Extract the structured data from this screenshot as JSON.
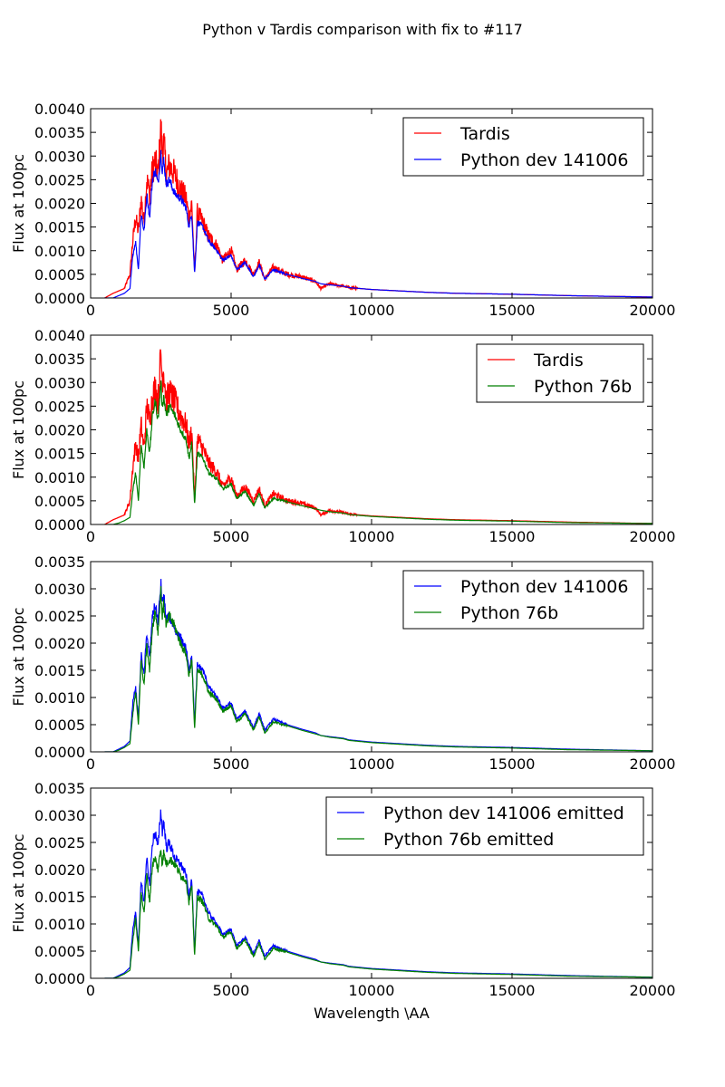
{
  "figure": {
    "title": "Python v Tardis comparison with fix to #117",
    "xlabel": "Wavelength \\AA"
  },
  "colors": {
    "red": "#ff0000",
    "blue": "#0000ff",
    "green": "#007f00"
  },
  "chart_data": [
    {
      "type": "line",
      "ylabel": "Flux at 100pc",
      "xlim": [
        0,
        20000
      ],
      "ylim": [
        0,
        0.004
      ],
      "xticks": [
        "0",
        "5000",
        "10000",
        "15000",
        "20000"
      ],
      "yticks": [
        "0.0000",
        "0.0005",
        "0.0010",
        "0.0015",
        "0.0020",
        "0.0025",
        "0.0030",
        "0.0035",
        "0.0040"
      ],
      "legend_position": "upper-right",
      "grid": false,
      "series": [
        {
          "name": "Tardis",
          "color": "red",
          "noisy": true,
          "x": [
            500,
            800,
            1000,
            1200,
            1400,
            1500,
            1600,
            1700,
            1800,
            1900,
            2000,
            2100,
            2200,
            2300,
            2400,
            2500,
            2550,
            2600,
            2700,
            2800,
            3000,
            3200,
            3400,
            3500,
            3600,
            3700,
            3800,
            4000,
            4200,
            4500,
            4700,
            5000,
            5200,
            5500,
            5800,
            6000,
            6200,
            6500,
            7000,
            7500,
            8000,
            8200,
            8500,
            9000,
            9200,
            10000,
            11000,
            12000,
            13000,
            15000,
            17000,
            20000
          ],
          "y": [
            0.0,
            0.0001,
            0.00015,
            0.0002,
            0.0005,
            0.0012,
            0.0017,
            0.0014,
            0.0021,
            0.0016,
            0.0025,
            0.0022,
            0.0027,
            0.0029,
            0.0026,
            0.0036,
            0.0031,
            0.0033,
            0.0026,
            0.0028,
            0.0026,
            0.0023,
            0.0021,
            0.0017,
            0.002,
            0.0005,
            0.0018,
            0.0016,
            0.0013,
            0.0011,
            0.0008,
            0.001,
            0.0006,
            0.0008,
            0.0005,
            0.00075,
            0.0004,
            0.00065,
            0.0005,
            0.00045,
            0.00035,
            0.0002,
            0.0003,
            0.00025,
            0.00022,
            0.00018,
            0.00015,
            0.00012,
            0.0001,
            8e-05,
            5e-05,
            2e-05
          ]
        },
        {
          "name": "Python dev 141006",
          "color": "blue",
          "noisy": false,
          "x": [
            500,
            800,
            1000,
            1200,
            1400,
            1500,
            1600,
            1700,
            1800,
            1900,
            2000,
            2100,
            2200,
            2300,
            2400,
            2500,
            2550,
            2600,
            2700,
            2800,
            3000,
            3200,
            3400,
            3500,
            3600,
            3700,
            3800,
            4000,
            4200,
            4500,
            4700,
            5000,
            5200,
            5500,
            5800,
            6000,
            6200,
            6500,
            7000,
            7500,
            8000,
            8200,
            8500,
            9000,
            9200,
            10000,
            11000,
            12000,
            13000,
            15000,
            17000,
            20000
          ],
          "y": [
            0.0,
            0.0,
            5e-05,
            0.0001,
            0.0002,
            0.0009,
            0.0012,
            0.0006,
            0.0018,
            0.0014,
            0.0022,
            0.0017,
            0.0025,
            0.0027,
            0.0024,
            0.0031,
            0.0027,
            0.0029,
            0.0024,
            0.0025,
            0.0022,
            0.0021,
            0.0019,
            0.0015,
            0.0018,
            0.0005,
            0.0016,
            0.0015,
            0.0012,
            0.001,
            0.0008,
            0.0009,
            0.0006,
            0.00075,
            0.00045,
            0.0007,
            0.0004,
            0.0006,
            0.0005,
            0.00042,
            0.00035,
            0.0003,
            0.00028,
            0.00025,
            0.00022,
            0.00018,
            0.00015,
            0.00012,
            0.0001,
            8e-05,
            5e-05,
            2e-05
          ]
        }
      ]
    },
    {
      "type": "line",
      "ylabel": "Flux at 100pc",
      "xlim": [
        0,
        20000
      ],
      "ylim": [
        0,
        0.004
      ],
      "xticks": [
        "0",
        "5000",
        "10000",
        "15000",
        "20000"
      ],
      "yticks": [
        "0.0000",
        "0.0005",
        "0.0010",
        "0.0015",
        "0.0020",
        "0.0025",
        "0.0030",
        "0.0035",
        "0.0040"
      ],
      "legend_position": "upper-right",
      "grid": false,
      "series": [
        {
          "name": "Tardis",
          "color": "red",
          "noisy": true,
          "x": [
            500,
            800,
            1000,
            1200,
            1400,
            1500,
            1600,
            1700,
            1800,
            1900,
            2000,
            2100,
            2200,
            2300,
            2400,
            2500,
            2550,
            2600,
            2700,
            2800,
            3000,
            3200,
            3400,
            3500,
            3600,
            3700,
            3800,
            4000,
            4200,
            4500,
            4700,
            5000,
            5200,
            5500,
            5800,
            6000,
            6200,
            6500,
            7000,
            7500,
            8000,
            8200,
            8500,
            9000,
            9200,
            10000,
            11000,
            12000,
            13000,
            15000,
            17000,
            20000
          ],
          "y": [
            0.0,
            0.0001,
            0.00015,
            0.0002,
            0.0005,
            0.0012,
            0.0017,
            0.0014,
            0.0021,
            0.0016,
            0.0025,
            0.0022,
            0.0027,
            0.0029,
            0.0026,
            0.0036,
            0.0031,
            0.0033,
            0.0026,
            0.0028,
            0.0026,
            0.0023,
            0.0021,
            0.0017,
            0.002,
            0.0005,
            0.0018,
            0.0016,
            0.0013,
            0.0011,
            0.0008,
            0.001,
            0.0006,
            0.0008,
            0.0005,
            0.00075,
            0.0004,
            0.00065,
            0.0005,
            0.00045,
            0.00035,
            0.0002,
            0.0003,
            0.00025,
            0.00022,
            0.00018,
            0.00015,
            0.00012,
            0.0001,
            8e-05,
            5e-05,
            2e-05
          ]
        },
        {
          "name": "Python 76b",
          "color": "green",
          "noisy": false,
          "x": [
            500,
            800,
            1000,
            1200,
            1400,
            1500,
            1600,
            1700,
            1800,
            1900,
            2000,
            2100,
            2200,
            2300,
            2400,
            2500,
            2550,
            2600,
            2700,
            2800,
            3000,
            3200,
            3400,
            3500,
            3600,
            3700,
            3800,
            4000,
            4200,
            4500,
            4700,
            5000,
            5200,
            5500,
            5800,
            6000,
            6200,
            6500,
            7000,
            7500,
            8000,
            8200,
            8500,
            9000,
            9200,
            10000,
            11000,
            12000,
            13000,
            15000,
            17000,
            20000
          ],
          "y": [
            0.0,
            0.0,
            3e-05,
            8e-05,
            0.00015,
            0.0007,
            0.0011,
            0.0005,
            0.0017,
            0.0012,
            0.002,
            0.0015,
            0.0023,
            0.0026,
            0.0022,
            0.003,
            0.0025,
            0.0027,
            0.0023,
            0.0025,
            0.0023,
            0.002,
            0.0018,
            0.0014,
            0.0017,
            0.0004,
            0.0015,
            0.0014,
            0.0011,
            0.00095,
            0.00075,
            0.00085,
            0.00055,
            0.0007,
            0.0004,
            0.00065,
            0.00035,
            0.00055,
            0.00048,
            0.0004,
            0.00033,
            0.0003,
            0.00027,
            0.00024,
            0.00021,
            0.00017,
            0.00014,
            0.00011,
            9e-05,
            7e-05,
            4e-05,
            2e-05
          ]
        }
      ]
    },
    {
      "type": "line",
      "ylabel": "Flux at 100pc",
      "xlim": [
        0,
        20000
      ],
      "ylim": [
        0,
        0.0035
      ],
      "xticks": [
        "0",
        "5000",
        "10000",
        "15000",
        "20000"
      ],
      "yticks": [
        "0.0000",
        "0.0005",
        "0.0010",
        "0.0015",
        "0.0020",
        "0.0025",
        "0.0030",
        "0.0035"
      ],
      "legend_position": "upper-right",
      "grid": false,
      "series": [
        {
          "name": "Python dev 141006",
          "color": "blue",
          "noisy": false,
          "x": [
            500,
            800,
            1000,
            1200,
            1400,
            1500,
            1600,
            1700,
            1800,
            1900,
            2000,
            2100,
            2200,
            2300,
            2400,
            2500,
            2550,
            2600,
            2700,
            2800,
            3000,
            3200,
            3400,
            3500,
            3600,
            3700,
            3800,
            4000,
            4200,
            4500,
            4700,
            5000,
            5200,
            5500,
            5800,
            6000,
            6200,
            6500,
            7000,
            7500,
            8000,
            8200,
            8500,
            9000,
            9200,
            10000,
            11000,
            12000,
            13000,
            15000,
            17000,
            20000
          ],
          "y": [
            0.0,
            0.0,
            5e-05,
            0.0001,
            0.0002,
            0.0009,
            0.0012,
            0.0006,
            0.0018,
            0.0014,
            0.0022,
            0.0017,
            0.0025,
            0.0027,
            0.0024,
            0.0031,
            0.0027,
            0.0029,
            0.0024,
            0.0025,
            0.0022,
            0.0021,
            0.0019,
            0.0015,
            0.0018,
            0.0005,
            0.0016,
            0.0015,
            0.0012,
            0.001,
            0.0008,
            0.0009,
            0.0006,
            0.00075,
            0.00045,
            0.0007,
            0.0004,
            0.0006,
            0.0005,
            0.00042,
            0.00035,
            0.0003,
            0.00028,
            0.00025,
            0.00022,
            0.00018,
            0.00015,
            0.00012,
            0.0001,
            8e-05,
            5e-05,
            2e-05
          ]
        },
        {
          "name": "Python 76b",
          "color": "green",
          "noisy": false,
          "x": [
            500,
            800,
            1000,
            1200,
            1400,
            1500,
            1600,
            1700,
            1800,
            1900,
            2000,
            2100,
            2200,
            2300,
            2400,
            2500,
            2550,
            2600,
            2700,
            2800,
            3000,
            3200,
            3400,
            3500,
            3600,
            3700,
            3800,
            4000,
            4200,
            4500,
            4700,
            5000,
            5200,
            5500,
            5800,
            6000,
            6200,
            6500,
            7000,
            7500,
            8000,
            8200,
            8500,
            9000,
            9200,
            10000,
            11000,
            12000,
            13000,
            15000,
            17000,
            20000
          ],
          "y": [
            0.0,
            0.0,
            3e-05,
            8e-05,
            0.00015,
            0.0007,
            0.0011,
            0.0005,
            0.0017,
            0.0012,
            0.002,
            0.0015,
            0.0023,
            0.0026,
            0.0022,
            0.003,
            0.0025,
            0.0027,
            0.0023,
            0.0025,
            0.0023,
            0.002,
            0.0018,
            0.0014,
            0.0017,
            0.0004,
            0.0015,
            0.0014,
            0.0011,
            0.00095,
            0.00075,
            0.00085,
            0.00055,
            0.0007,
            0.0004,
            0.00065,
            0.00035,
            0.00055,
            0.00048,
            0.0004,
            0.00033,
            0.0003,
            0.00027,
            0.00024,
            0.00021,
            0.00017,
            0.00014,
            0.00011,
            9e-05,
            7e-05,
            4e-05,
            2e-05
          ]
        }
      ]
    },
    {
      "type": "line",
      "ylabel": "Flux at 100pc",
      "xlabel": "Wavelength \\AA",
      "xlim": [
        0,
        20000
      ],
      "ylim": [
        0,
        0.0035
      ],
      "xticks": [
        "0",
        "5000",
        "10000",
        "15000",
        "20000"
      ],
      "yticks": [
        "0.0000",
        "0.0005",
        "0.0010",
        "0.0015",
        "0.0020",
        "0.0025",
        "0.0030",
        "0.0035"
      ],
      "legend_position": "upper-right",
      "grid": false,
      "series": [
        {
          "name": "Python dev 141006 emitted",
          "color": "blue",
          "noisy": false,
          "x": [
            500,
            800,
            1000,
            1200,
            1400,
            1500,
            1600,
            1700,
            1800,
            1900,
            2000,
            2100,
            2200,
            2300,
            2400,
            2500,
            2550,
            2600,
            2700,
            2800,
            3000,
            3200,
            3400,
            3500,
            3600,
            3700,
            3800,
            4000,
            4200,
            4500,
            4700,
            5000,
            5200,
            5500,
            5800,
            6000,
            6200,
            6500,
            7000,
            7500,
            8000,
            8200,
            8500,
            9000,
            9200,
            10000,
            11000,
            12000,
            13000,
            15000,
            17000,
            20000
          ],
          "y": [
            0.0,
            0.0,
            5e-05,
            0.0001,
            0.0002,
            0.0009,
            0.0012,
            0.0006,
            0.0018,
            0.0014,
            0.0022,
            0.0017,
            0.0025,
            0.0027,
            0.0024,
            0.0031,
            0.0027,
            0.0029,
            0.0024,
            0.0025,
            0.0022,
            0.0021,
            0.0019,
            0.0015,
            0.0018,
            0.0005,
            0.0016,
            0.0015,
            0.0012,
            0.001,
            0.0008,
            0.0009,
            0.0006,
            0.00075,
            0.00045,
            0.0007,
            0.0004,
            0.0006,
            0.0005,
            0.00042,
            0.00035,
            0.0003,
            0.00028,
            0.00025,
            0.00022,
            0.00018,
            0.00015,
            0.00012,
            0.0001,
            8e-05,
            5e-05,
            2e-05
          ]
        },
        {
          "name": "Python 76b emitted",
          "color": "green",
          "noisy": false,
          "x": [
            500,
            800,
            1000,
            1200,
            1400,
            1500,
            1600,
            1700,
            1800,
            1900,
            2000,
            2100,
            2200,
            2300,
            2400,
            2500,
            2550,
            2600,
            2700,
            2800,
            3000,
            3200,
            3400,
            3500,
            3600,
            3700,
            3800,
            4000,
            4200,
            4500,
            4700,
            5000,
            5200,
            5500,
            5800,
            6000,
            6200,
            6500,
            7000,
            7500,
            8000,
            8200,
            8500,
            9000,
            9200,
            10000,
            11000,
            12000,
            13000,
            15000,
            17000,
            20000
          ],
          "y": [
            0.0,
            0.0,
            3e-05,
            8e-05,
            0.00015,
            0.0007,
            0.0011,
            0.0005,
            0.0016,
            0.0012,
            0.0019,
            0.0014,
            0.0021,
            0.0022,
            0.002,
            0.0024,
            0.0021,
            0.0023,
            0.0021,
            0.0022,
            0.0021,
            0.0019,
            0.0018,
            0.0014,
            0.0017,
            0.0004,
            0.0015,
            0.0014,
            0.0011,
            0.00095,
            0.00075,
            0.00085,
            0.00055,
            0.0007,
            0.0004,
            0.00065,
            0.00035,
            0.00055,
            0.00048,
            0.0004,
            0.00033,
            0.0003,
            0.00027,
            0.00024,
            0.00021,
            0.00017,
            0.00014,
            0.00011,
            9e-05,
            7e-05,
            4e-05,
            2e-05
          ]
        }
      ]
    }
  ]
}
